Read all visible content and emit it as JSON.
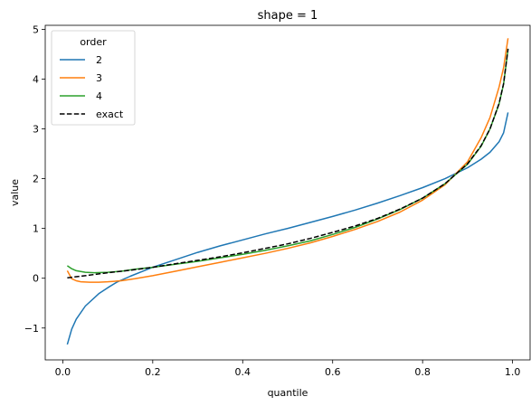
{
  "chart_data": {
    "type": "line",
    "title": "shape = 1",
    "xlabel": "quantile",
    "ylabel": "value",
    "xlim": [
      -0.039,
      1.039
    ],
    "ylim": [
      -1.64,
      5.08
    ],
    "xticks": [
      0.0,
      0.2,
      0.4,
      0.6,
      0.8,
      1.0
    ],
    "xtick_labels": [
      "0.0",
      "0.2",
      "0.4",
      "0.6",
      "0.8",
      "1.0"
    ],
    "yticks": [
      -1,
      0,
      1,
      2,
      3,
      4,
      5
    ],
    "ytick_labels": [
      "−1",
      "0",
      "1",
      "2",
      "3",
      "4",
      "5"
    ],
    "grid": false,
    "legend": {
      "title": "order",
      "placement": "top-left"
    },
    "series": [
      {
        "name": "2",
        "color": "#1f77b4",
        "dash": "solid",
        "x": [
          0.01,
          0.02,
          0.03,
          0.05,
          0.08,
          0.1,
          0.12,
          0.15,
          0.2,
          0.25,
          0.3,
          0.35,
          0.4,
          0.45,
          0.5,
          0.55,
          0.6,
          0.65,
          0.7,
          0.75,
          0.8,
          0.85,
          0.9,
          0.93,
          0.95,
          0.97,
          0.98,
          0.99
        ],
        "y": [
          -1.33,
          -1.02,
          -0.82,
          -0.56,
          -0.31,
          -0.19,
          -0.08,
          0.04,
          0.22,
          0.37,
          0.52,
          0.65,
          0.77,
          0.89,
          1.0,
          1.12,
          1.24,
          1.37,
          1.51,
          1.66,
          1.82,
          2.0,
          2.22,
          2.39,
          2.53,
          2.74,
          2.92,
          3.33
        ]
      },
      {
        "name": "3",
        "color": "#ff7f0e",
        "dash": "solid",
        "x": [
          0.01,
          0.02,
          0.03,
          0.04,
          0.06,
          0.08,
          0.1,
          0.13,
          0.16,
          0.2,
          0.25,
          0.3,
          0.35,
          0.4,
          0.45,
          0.5,
          0.55,
          0.6,
          0.65,
          0.7,
          0.75,
          0.8,
          0.85,
          0.9,
          0.93,
          0.95,
          0.97,
          0.98,
          0.99
        ],
        "y": [
          0.15,
          -0.01,
          -0.05,
          -0.07,
          -0.08,
          -0.08,
          -0.07,
          -0.05,
          -0.01,
          0.05,
          0.14,
          0.23,
          0.32,
          0.41,
          0.5,
          0.6,
          0.71,
          0.84,
          0.98,
          1.14,
          1.33,
          1.57,
          1.88,
          2.34,
          2.82,
          3.23,
          3.84,
          4.23,
          4.82
        ]
      },
      {
        "name": "4",
        "color": "#2ca02c",
        "dash": "solid",
        "x": [
          0.01,
          0.02,
          0.03,
          0.05,
          0.07,
          0.1,
          0.13,
          0.16,
          0.2,
          0.25,
          0.3,
          0.35,
          0.4,
          0.45,
          0.5,
          0.55,
          0.6,
          0.65,
          0.7,
          0.75,
          0.8,
          0.85,
          0.9,
          0.93,
          0.95,
          0.97,
          0.98,
          0.99
        ],
        "y": [
          0.25,
          0.19,
          0.15,
          0.12,
          0.11,
          0.12,
          0.14,
          0.18,
          0.22,
          0.28,
          0.34,
          0.41,
          0.48,
          0.56,
          0.65,
          0.75,
          0.88,
          1.02,
          1.19,
          1.38,
          1.61,
          1.9,
          2.29,
          2.65,
          3.0,
          3.5,
          3.9,
          4.6
        ]
      },
      {
        "name": "exact",
        "color": "#000000",
        "dash": "dashed",
        "x": [
          0.01,
          0.05,
          0.1,
          0.15,
          0.2,
          0.25,
          0.3,
          0.35,
          0.4,
          0.45,
          0.5,
          0.55,
          0.6,
          0.65,
          0.7,
          0.75,
          0.8,
          0.85,
          0.9,
          0.93,
          0.95,
          0.97,
          0.98,
          0.99
        ],
        "y": [
          0.01,
          0.05,
          0.11,
          0.16,
          0.22,
          0.29,
          0.36,
          0.43,
          0.51,
          0.6,
          0.69,
          0.8,
          0.92,
          1.05,
          1.2,
          1.39,
          1.61,
          1.9,
          2.3,
          2.66,
          3.0,
          3.51,
          3.91,
          4.61
        ]
      }
    ]
  }
}
